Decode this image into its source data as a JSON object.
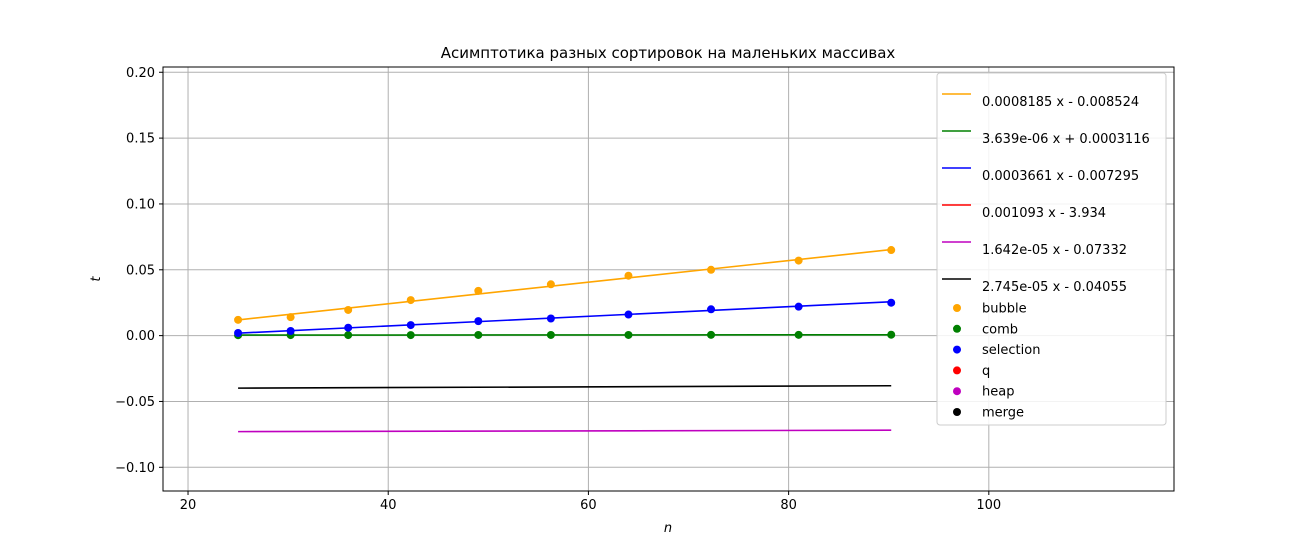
{
  "chart_data": {
    "type": "scatter",
    "title": "Асимптотика разных сортировок на маленьких массивах",
    "xlabel": "n",
    "ylabel": "t",
    "xlim": [
      17.5,
      118.5
    ],
    "ylim": [
      -0.118,
      0.204
    ],
    "xticks": [
      20,
      40,
      60,
      80,
      100
    ],
    "yticks": [
      -0.1,
      -0.05,
      0.0,
      0.05,
      0.1,
      0.15,
      0.2
    ],
    "xtick_labels": [
      "20",
      "40",
      "60",
      "80",
      "100"
    ],
    "ytick_labels": [
      "−0.10",
      "−0.05",
      "0.00",
      "0.05",
      "0.10",
      "0.15",
      "0.20"
    ],
    "grid": true,
    "legend_position": "upper-right",
    "x": [
      25,
      30.25,
      36,
      42.25,
      49,
      56.25,
      64,
      72.25,
      81,
      90.25
    ],
    "series": [
      {
        "name": "bubble",
        "color": "#ffa500",
        "values": [
          0.012,
          0.014,
          0.0195,
          0.027,
          0.034,
          0.039,
          0.0455,
          0.05,
          0.057,
          0.065
        ],
        "fit": {
          "label": "0.0008185 x - 0.008524",
          "slope": 0.0008185,
          "intercept": -0.008524
        }
      },
      {
        "name": "comb",
        "color": "#008000",
        "values": [
          0.0003,
          0.0004,
          0.0004,
          0.0004,
          0.0005,
          0.0005,
          0.0005,
          0.0006,
          0.0006,
          0.0007
        ],
        "fit": {
          "label": "3.639e-06 x + 0.0003116",
          "slope": 3.639e-06,
          "intercept": 0.0003116
        }
      },
      {
        "name": "selection",
        "color": "#0000ff",
        "values": [
          0.002,
          0.0035,
          0.006,
          0.008,
          0.011,
          0.013,
          0.016,
          0.02,
          0.022,
          0.025
        ],
        "fit": {
          "label": "0.0003661 x - 0.007295",
          "slope": 0.0003661,
          "intercept": -0.007295
        }
      },
      {
        "name": "q",
        "color": "#ff0000",
        "values": [],
        "fit": {
          "label": "0.001093 x - 3.934",
          "slope": 0.001093,
          "intercept": -3.934
        }
      },
      {
        "name": "heap",
        "color": "#bf00bf",
        "values": [],
        "fit": {
          "label": "1.642e-05 x - 0.07332",
          "slope": 1.642e-05,
          "intercept": -0.07332
        }
      },
      {
        "name": "merge",
        "color": "#000000",
        "values": [],
        "fit": {
          "label": "2.745e-05 x - 0.04055",
          "slope": 2.745e-05,
          "intercept": -0.04055
        }
      }
    ]
  }
}
